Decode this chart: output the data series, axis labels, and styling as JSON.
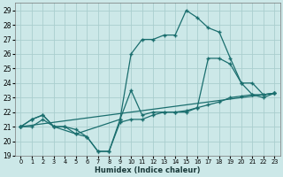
{
  "xlabel": "Humidex (Indice chaleur)",
  "ylabel": "",
  "xlim": [
    -0.5,
    23.5
  ],
  "ylim": [
    19,
    29.5
  ],
  "yticks": [
    19,
    20,
    21,
    22,
    23,
    24,
    25,
    26,
    27,
    28,
    29
  ],
  "xticks": [
    0,
    1,
    2,
    3,
    4,
    5,
    6,
    7,
    8,
    9,
    10,
    11,
    12,
    13,
    14,
    15,
    16,
    17,
    18,
    19,
    20,
    21,
    22,
    23
  ],
  "bg_color": "#cce8e8",
  "grid_color": "#aacece",
  "line_color": "#1a6e6e",
  "lines": [
    {
      "x": [
        0,
        1,
        2,
        3,
        4,
        5,
        6,
        7,
        8,
        9,
        10,
        11,
        12,
        13,
        14,
        15,
        16,
        17,
        18,
        19,
        20,
        21,
        22,
        23
      ],
      "y": [
        21,
        21.5,
        21.8,
        21.0,
        21.0,
        20.5,
        20.3,
        19.3,
        19.3,
        21.5,
        26.0,
        27.0,
        27.0,
        27.3,
        27.3,
        29.0,
        28.5,
        27.8,
        27.5,
        25.7,
        24.0,
        23.2,
        23.0,
        23.3
      ]
    },
    {
      "x": [
        0,
        1,
        2,
        3,
        5,
        9,
        10,
        11,
        12,
        13,
        14,
        15,
        16,
        17,
        18,
        19,
        20,
        21,
        22,
        23
      ],
      "y": [
        21,
        21.5,
        21.8,
        21.0,
        20.5,
        21.5,
        23.5,
        21.8,
        22.0,
        22.0,
        22.0,
        22.0,
        22.3,
        25.7,
        25.7,
        25.3,
        24.0,
        24.0,
        23.2,
        23.3
      ]
    },
    {
      "x": [
        0,
        23
      ],
      "y": [
        21,
        23.3
      ]
    },
    {
      "x": [
        0,
        1,
        2,
        3,
        4,
        5,
        6,
        7,
        8,
        9,
        10,
        11,
        12,
        13,
        14,
        15,
        16,
        17,
        18,
        19,
        20,
        21,
        22,
        23
      ],
      "y": [
        21,
        21.0,
        21.5,
        21.0,
        21.0,
        20.8,
        20.3,
        19.3,
        19.3,
        21.3,
        21.5,
        21.5,
        21.8,
        22.0,
        22.0,
        22.1,
        22.3,
        22.5,
        22.7,
        23.0,
        23.1,
        23.2,
        23.2,
        23.3
      ]
    }
  ]
}
